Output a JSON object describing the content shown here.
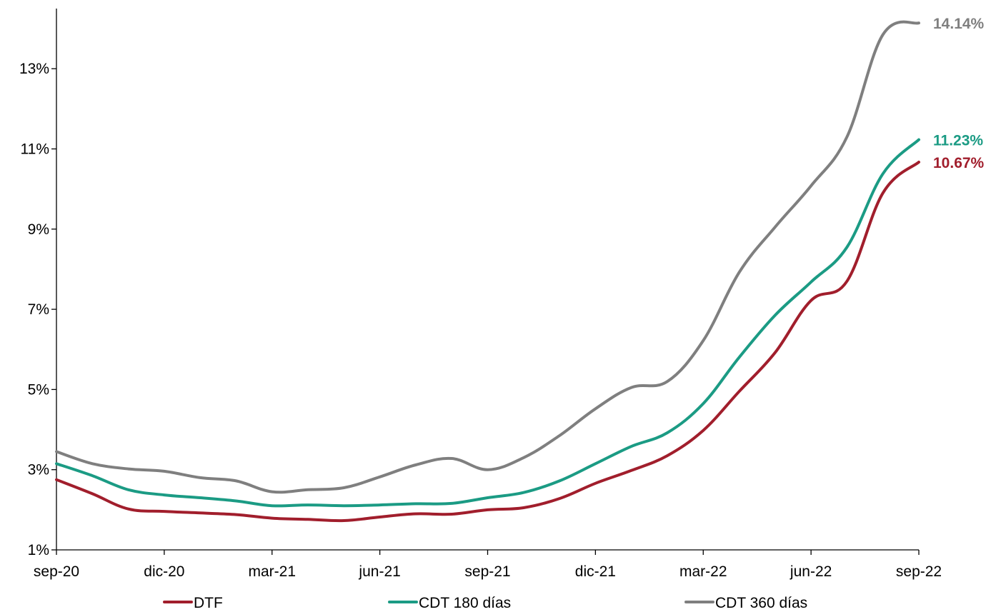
{
  "chart_data": {
    "type": "line",
    "title": "",
    "xlabel": "",
    "ylabel": "",
    "ylim": [
      1,
      14.5
    ],
    "yticks": [
      {
        "value": 1,
        "label": "1%"
      },
      {
        "value": 3,
        "label": "3%"
      },
      {
        "value": 5,
        "label": "5%"
      },
      {
        "value": 7,
        "label": "7%"
      },
      {
        "value": 9,
        "label": "9%"
      },
      {
        "value": 11,
        "label": "11%"
      },
      {
        "value": 13,
        "label": "13%"
      }
    ],
    "xticks": [
      "sep-20",
      "dic-20",
      "mar-21",
      "jun-21",
      "sep-21",
      "dic-21",
      "mar-22",
      "jun-22",
      "sep-22"
    ],
    "x": [
      "sep-20",
      "oct-20",
      "nov-20",
      "dic-20",
      "ene-21",
      "feb-21",
      "mar-21",
      "abr-21",
      "may-21",
      "jun-21",
      "jul-21",
      "ago-21",
      "sep-21",
      "oct-21",
      "nov-21",
      "dic-21",
      "ene-22",
      "feb-22",
      "mar-22",
      "abr-22",
      "may-22",
      "jun-22",
      "jul-22",
      "ago-22",
      "sep-22"
    ],
    "grid": false,
    "legend_position": "bottom",
    "series": [
      {
        "name": "DTF",
        "color": "#A11E2C",
        "end_label": "10.67%",
        "values": [
          2.75,
          2.4,
          2.02,
          1.96,
          1.92,
          1.88,
          1.79,
          1.76,
          1.73,
          1.82,
          1.9,
          1.89,
          2.0,
          2.05,
          2.28,
          2.66,
          2.98,
          3.35,
          3.98,
          4.95,
          5.92,
          7.22,
          7.7,
          9.9,
          10.67
        ]
      },
      {
        "name": "CDT 180 días",
        "color": "#1B9B84",
        "end_label": "11.23%",
        "values": [
          3.15,
          2.85,
          2.5,
          2.37,
          2.3,
          2.22,
          2.1,
          2.12,
          2.1,
          2.12,
          2.15,
          2.16,
          2.3,
          2.43,
          2.72,
          3.15,
          3.58,
          3.92,
          4.65,
          5.8,
          6.85,
          7.68,
          8.55,
          10.38,
          11.23
        ]
      },
      {
        "name": "CDT 360 días",
        "color": "#7F7F7F",
        "end_label": "14.14%",
        "values": [
          3.45,
          3.15,
          3.02,
          2.96,
          2.8,
          2.72,
          2.45,
          2.5,
          2.55,
          2.82,
          3.12,
          3.28,
          3.0,
          3.3,
          3.85,
          4.52,
          5.05,
          5.2,
          6.22,
          7.92,
          9.05,
          10.08,
          11.3,
          13.85,
          14.14
        ]
      }
    ]
  }
}
